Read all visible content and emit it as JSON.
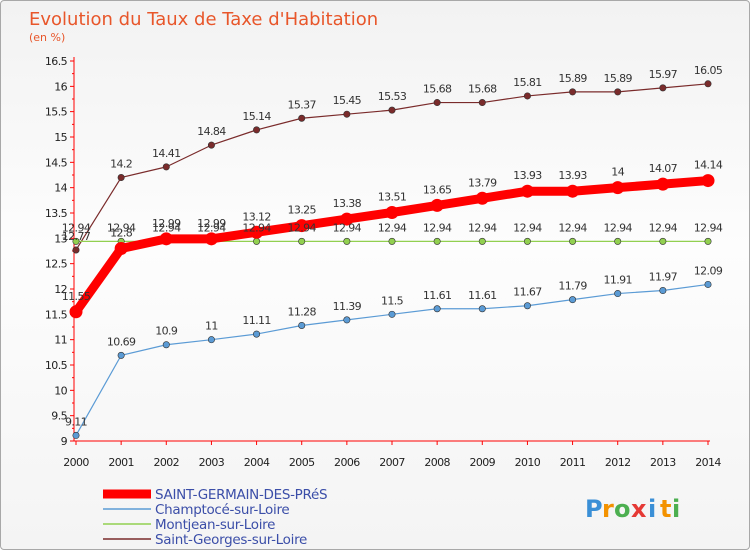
{
  "chart_data": {
    "type": "line",
    "title": "Evolution du Taux de Taxe d'Habitation",
    "subtitle": "(en %)",
    "xlabel": "",
    "ylabel": "",
    "x": [
      2000,
      2001,
      2002,
      2003,
      2004,
      2005,
      2006,
      2007,
      2008,
      2009,
      2010,
      2011,
      2012,
      2013,
      2014
    ],
    "ylim": [
      9,
      16.5
    ],
    "yticks": [
      "9",
      "9.5",
      "10",
      "10.5",
      "11",
      "11.5",
      "12",
      "12.5",
      "13",
      "13.5",
      "14",
      "14.5",
      "15",
      "15.5",
      "16",
      "16.5"
    ],
    "grid": false,
    "legend_position": "bottom-left",
    "series": [
      {
        "name": "SAINT-GERMAIN-DES-PRéS",
        "color": "#ff0000",
        "values": [
          11.55,
          12.8,
          12.99,
          12.99,
          13.12,
          13.25,
          13.38,
          13.51,
          13.65,
          13.79,
          13.93,
          13.93,
          14,
          14.07,
          14.14
        ],
        "labels": [
          "11.55",
          "12.8",
          "12.99",
          "12.99",
          "13.12",
          "13.25",
          "13.38",
          "13.51",
          "13.65",
          "13.79",
          "13.93",
          "13.93",
          "14",
          "14.07",
          "14.14"
        ]
      },
      {
        "name": "Champtocé-sur-Loire",
        "color": "#5b9bd5",
        "values": [
          9.11,
          10.69,
          10.9,
          11,
          11.11,
          11.28,
          11.39,
          11.5,
          11.61,
          11.61,
          11.67,
          11.79,
          11.91,
          11.97,
          12.09
        ],
        "labels": [
          "9.11",
          "10.69",
          "10.9",
          "11",
          "11.11",
          "11.28",
          "11.39",
          "11.5",
          "11.61",
          "11.61",
          "11.67",
          "11.79",
          "11.91",
          "11.97",
          "12.09"
        ]
      },
      {
        "name": "Montjean-sur-Loire",
        "color": "#92d050",
        "values": [
          12.94,
          12.94,
          12.94,
          12.94,
          12.94,
          12.94,
          12.94,
          12.94,
          12.94,
          12.94,
          12.94,
          12.94,
          12.94,
          12.94,
          12.94
        ],
        "labels": [
          "12.94",
          "12.94",
          "12.94",
          "12.94",
          "12.94",
          "12.94",
          "12.94",
          "12.94",
          "12.94",
          "12.94",
          "12.94",
          "12.94",
          "12.94",
          "12.94",
          "12.94"
        ]
      },
      {
        "name": "Saint-Georges-sur-Loire",
        "color": "#7a2b2b",
        "values": [
          12.77,
          14.2,
          14.41,
          14.84,
          15.14,
          15.37,
          15.45,
          15.53,
          15.68,
          15.68,
          15.81,
          15.89,
          15.89,
          15.97,
          16.05
        ],
        "labels": [
          "12.77",
          "14.2",
          "14.41",
          "14.84",
          "15.14",
          "15.37",
          "15.45",
          "15.53",
          "15.68",
          "15.68",
          "15.81",
          "15.89",
          "15.89",
          "15.97",
          "16.05"
        ]
      }
    ]
  },
  "logo": {
    "letters": [
      "P",
      "r",
      "o",
      "x",
      "i",
      "t",
      "i"
    ],
    "colors": [
      "#3a8fd6",
      "#f39200",
      "#4caf50",
      "#e53935",
      "#3a8fd6",
      "#f39200",
      "#4caf50"
    ]
  }
}
